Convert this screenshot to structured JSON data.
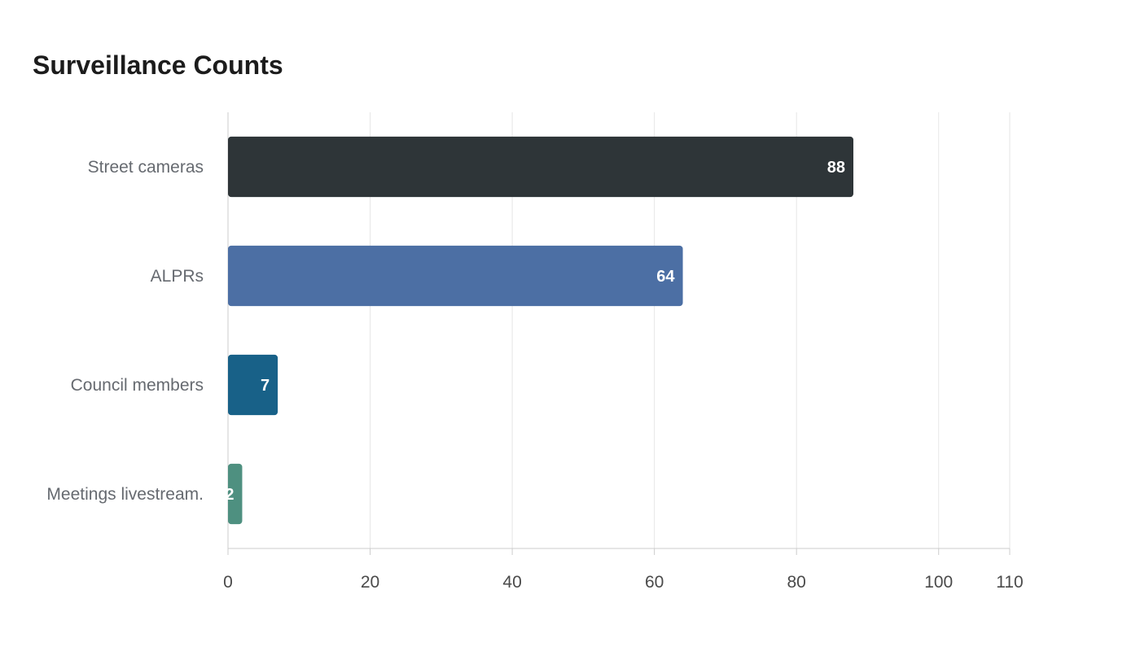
{
  "chart_data": {
    "type": "bar",
    "orientation": "horizontal",
    "title": "Surveillance Counts",
    "categories": [
      "Street cameras",
      "ALPRs",
      "Council members",
      "Meetings livestream."
    ],
    "values": [
      88,
      64,
      7,
      2
    ],
    "colors": [
      "#2e3538",
      "#4c6fa4",
      "#186188",
      "#4e9080"
    ],
    "xlim": [
      0,
      110
    ],
    "xticks": [
      0,
      20,
      40,
      60,
      80,
      100,
      110
    ],
    "grid": true,
    "value_labels_visible": true
  }
}
